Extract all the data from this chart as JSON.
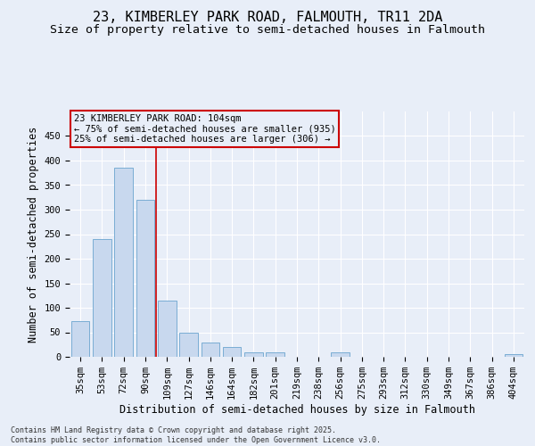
{
  "title_line1": "23, KIMBERLEY PARK ROAD, FALMOUTH, TR11 2DA",
  "title_line2": "Size of property relative to semi-detached houses in Falmouth",
  "xlabel": "Distribution of semi-detached houses by size in Falmouth",
  "ylabel": "Number of semi-detached properties",
  "categories": [
    "35sqm",
    "53sqm",
    "72sqm",
    "90sqm",
    "109sqm",
    "127sqm",
    "146sqm",
    "164sqm",
    "182sqm",
    "201sqm",
    "219sqm",
    "238sqm",
    "256sqm",
    "275sqm",
    "293sqm",
    "312sqm",
    "330sqm",
    "349sqm",
    "367sqm",
    "386sqm",
    "404sqm"
  ],
  "values": [
    72,
    240,
    385,
    320,
    115,
    50,
    30,
    20,
    10,
    10,
    0,
    0,
    10,
    0,
    0,
    0,
    0,
    0,
    0,
    0,
    5
  ],
  "bar_color": "#c8d8ee",
  "bar_edge_color": "#7aadd4",
  "vline_color": "#cc0000",
  "vline_x_idx": 3.5,
  "annotation_text": "23 KIMBERLEY PARK ROAD: 104sqm\n← 75% of semi-detached houses are smaller (935)\n25% of semi-detached houses are larger (306) →",
  "annotation_box_color": "#cc0000",
  "ylim": [
    0,
    500
  ],
  "yticks": [
    0,
    50,
    100,
    150,
    200,
    250,
    300,
    350,
    400,
    450
  ],
  "footer_text": "Contains HM Land Registry data © Crown copyright and database right 2025.\nContains public sector information licensed under the Open Government Licence v3.0.",
  "bg_color": "#e8eef8",
  "grid_color": "#ffffff",
  "title_fontsize": 11,
  "subtitle_fontsize": 9.5,
  "tick_fontsize": 7.5,
  "label_fontsize": 8.5,
  "footer_fontsize": 6,
  "annot_fontsize": 7.5
}
